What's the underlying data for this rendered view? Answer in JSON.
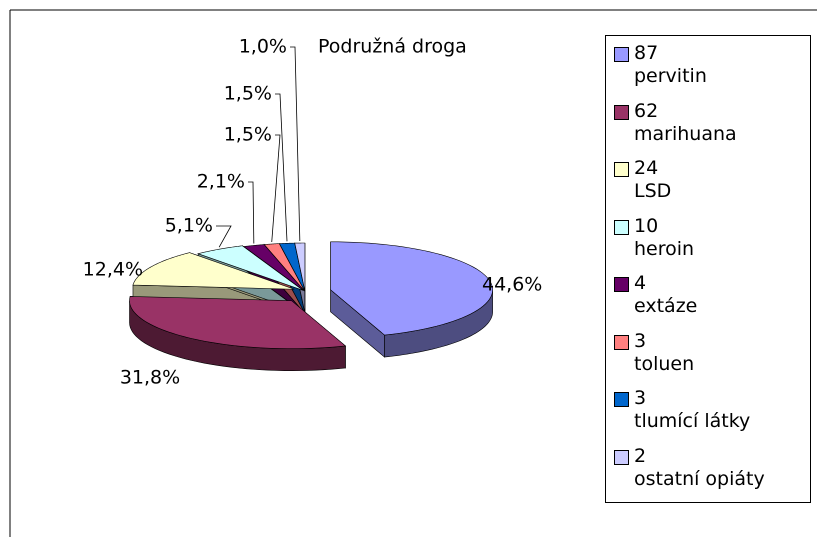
{
  "chart_data": {
    "type": "pie",
    "title": "Podružná droga",
    "categories": [
      "87\npervitin",
      "62\nmarihuana",
      "24\nLSD",
      "10\nheroin",
      "4\nextáze",
      "3\ntoluen",
      "3\ntlumící látky",
      "2\nostatní opiáty"
    ],
    "values": [
      44.6,
      31.8,
      12.4,
      5.1,
      2.1,
      1.5,
      1.5,
      1.0
    ],
    "value_labels": [
      "44,6%",
      "31,8%",
      "12,4%",
      "5,1%",
      "2,1%",
      "1,5%",
      "1,5%",
      "1,0%"
    ],
    "colors": [
      "#9999ff",
      "#993366",
      "#ffffcc",
      "#ccffff",
      "#660066",
      "#ff8080",
      "#0066cc",
      "#ccccff"
    ],
    "legend": "right"
  }
}
